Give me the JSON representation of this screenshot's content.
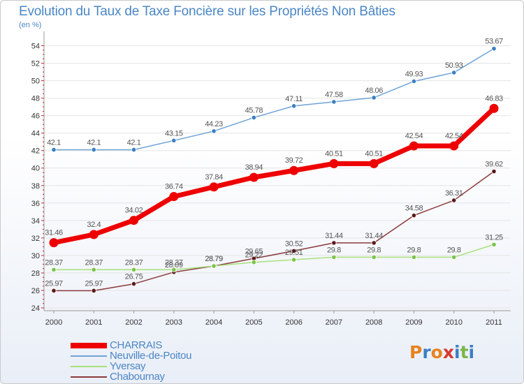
{
  "title": "Evolution du Taux de Taxe Foncière sur les Propriétés Non Bâties",
  "unit_label": "(en %)",
  "logo": {
    "text": "Proxiti",
    "letters": [
      "P",
      "r",
      "o",
      "x",
      "i",
      "t",
      "i"
    ],
    "colors": [
      "#e8821e",
      "#3b7fc4",
      "#e8821e",
      "#d6382f",
      "#3b7fc4",
      "#7ab648",
      "#3b7fc4"
    ]
  },
  "chart_data": {
    "type": "line",
    "title": "Evolution du Taux de Taxe Foncière sur les Propriétés Non Bâties",
    "ylabel": "(en %)",
    "x": [
      "2000",
      "2001",
      "2002",
      "2003",
      "2004",
      "2005",
      "2006",
      "2007",
      "2008",
      "2009",
      "2010",
      "2011"
    ],
    "ylim": [
      24,
      55
    ],
    "yticks": [
      24,
      26,
      28,
      30,
      32,
      34,
      36,
      38,
      40,
      42,
      44,
      46,
      48,
      50,
      52,
      54
    ],
    "legend_position": "bottom-left",
    "series": [
      {
        "name": "Neuville-de-Poitou",
        "color": "#6fa3d6",
        "marker": "#3b7fc4",
        "values": [
          42.1,
          42.1,
          42.1,
          43.15,
          44.23,
          45.78,
          47.11,
          47.58,
          48.06,
          49.93,
          50.93,
          53.67
        ],
        "labels": [
          "42.1",
          "42.1",
          "42.1",
          "43.15",
          "44.23",
          "45.78",
          "47.11",
          "47.58",
          "48.06",
          "49.93",
          "50.93",
          "53.67"
        ]
      },
      {
        "name": "Chabournay",
        "color": "#8b3a3a",
        "marker": "#5a1a1a",
        "values": [
          25.97,
          25.97,
          26.75,
          28.09,
          28.79,
          29.65,
          30.52,
          31.44,
          31.44,
          34.58,
          36.31,
          39.62
        ],
        "labels": [
          "25.97",
          "25.97",
          "26.75",
          "28.09",
          "28.79",
          "29.65",
          "30.52",
          "31.44",
          "31.44",
          "34.58",
          "36.31",
          "39.62"
        ]
      },
      {
        "name": "Yversay",
        "color": "#a8e07c",
        "marker": "#7bc34a",
        "values": [
          28.37,
          28.37,
          28.37,
          28.37,
          28.79,
          29.22,
          29.51,
          29.8,
          29.8,
          29.8,
          29.8,
          31.25
        ],
        "labels": [
          "28.37",
          "28.37",
          "28.37",
          "28.37",
          "28.79",
          "29.22",
          "29.51",
          "29.8",
          "29.8",
          "29.8",
          "29.8",
          "31.25"
        ]
      },
      {
        "name": "CHARRAIS",
        "color": "#ee0000",
        "marker": "#ee0000",
        "values": [
          31.46,
          32.4,
          34.02,
          36.74,
          37.84,
          38.94,
          39.72,
          40.51,
          40.51,
          42.54,
          42.54,
          46.83
        ],
        "labels": [
          "31.46",
          "32.4",
          "34.02",
          "36.74",
          "37.84",
          "38.94",
          "39.72",
          "40.51",
          "40.51",
          "42.54",
          "42.54",
          "46.83"
        ]
      }
    ],
    "legend": [
      "CHARRAIS",
      "Neuville-de-Poitou",
      "Yversay",
      "Chabournay"
    ]
  }
}
